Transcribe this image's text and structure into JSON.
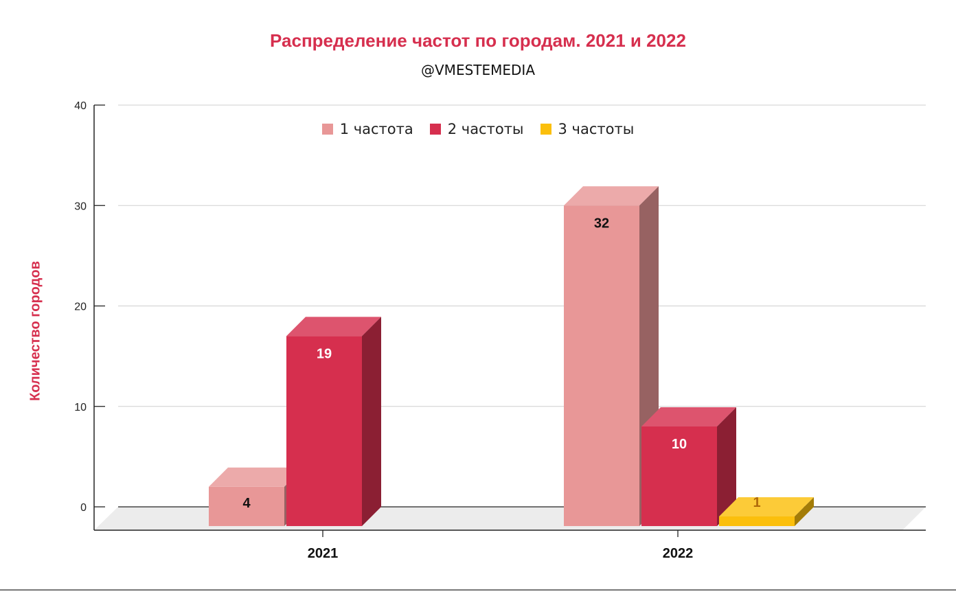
{
  "chart_data": {
    "type": "bar",
    "title": "Распределение частот по городам. 2021 и 2022",
    "subtitle": "@VMESTEMEDIA",
    "ylabel": "Количество городов",
    "xlabel": "",
    "ylim": [
      0,
      40
    ],
    "yticks": [
      "0",
      "10",
      "20",
      "30",
      "40"
    ],
    "grid": true,
    "legend_position": "top-center",
    "categories": [
      "2021",
      "2022"
    ],
    "series": [
      {
        "name": "1 частота",
        "color": "#e89797",
        "values": [
          4,
          32
        ],
        "labels": [
          "4",
          "32"
        ]
      },
      {
        "name": "2 частоты",
        "color": "#d62f4e",
        "values": [
          19,
          10
        ],
        "labels": [
          "19",
          "10"
        ]
      },
      {
        "name": "3 частоты",
        "color": "#fbbf0c",
        "values": [
          null,
          1
        ],
        "labels": [
          null,
          "1"
        ]
      }
    ]
  }
}
